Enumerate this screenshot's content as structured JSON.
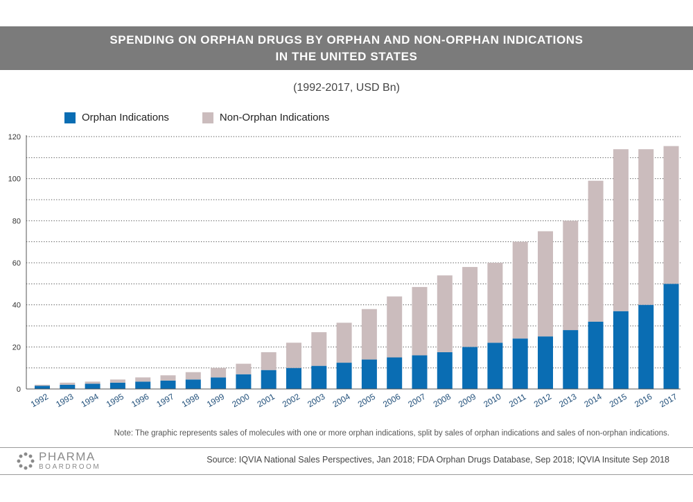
{
  "header": {
    "title_line1": "SPENDING ON ORPHAN DRUGS BY ORPHAN AND NON-ORPHAN INDICATIONS",
    "title_line2": "IN THE UNITED STATES",
    "subtitle": "(1992-2017, USD Bn)"
  },
  "legend": {
    "orphan_label": "Orphan Indications",
    "non_orphan_label": "Non-Orphan Indications"
  },
  "colors": {
    "orphan": "#0a6db3",
    "non_orphan": "#cbbcbd",
    "title_band": "#7b7b7b",
    "axis_text": "#1f4e79"
  },
  "chart_data": {
    "type": "bar",
    "stacked": true,
    "title": "SPENDING ON ORPHAN DRUGS BY ORPHAN AND NON-ORPHAN INDICATIONS IN THE UNITED STATES",
    "subtitle": "(1992-2017, USD Bn)",
    "categories": [
      "1992",
      "1993",
      "1994",
      "1995",
      "1996",
      "1997",
      "1998",
      "1999",
      "2000",
      "2001",
      "2002",
      "2003",
      "2004",
      "2005",
      "2006",
      "2007",
      "2008",
      "2009",
      "2010",
      "2011",
      "2012",
      "2013",
      "2014",
      "2015",
      "2016",
      "2017"
    ],
    "series": [
      {
        "name": "Orphan Indications",
        "values": [
          1.5,
          2,
          2.5,
          3,
          3.5,
          4,
          4.5,
          5.5,
          7,
          9,
          10,
          11,
          12.5,
          14,
          15,
          16,
          17.5,
          20,
          22,
          24,
          25,
          28,
          32,
          37,
          40,
          50
        ]
      },
      {
        "name": "Non-Orphan Indications",
        "values": [
          0.5,
          1,
          1,
          1.5,
          2,
          2.5,
          3.5,
          4.5,
          5,
          8.5,
          12,
          16,
          19,
          24,
          29,
          32.5,
          36.5,
          38,
          38,
          46,
          50,
          52,
          67,
          77,
          74,
          65.5
        ]
      }
    ],
    "ylim": [
      0,
      120
    ],
    "yticks": [
      0,
      20,
      40,
      60,
      80,
      100,
      120
    ],
    "grid": true,
    "legend_position": "top-left"
  },
  "footer": {
    "note": "Note: The graphic represents sales of molecules with one or more orphan indications, split by sales of orphan indications and sales of non-orphan indications.",
    "source": "Source:  IQVIA National Sales Perspectives, Jan 2018; FDA Orphan Drugs Database, Sep 2018; IQVIA Insitute Sep 2018",
    "logo_top": "PHARMA",
    "logo_bottom": "BOARDROOM"
  }
}
